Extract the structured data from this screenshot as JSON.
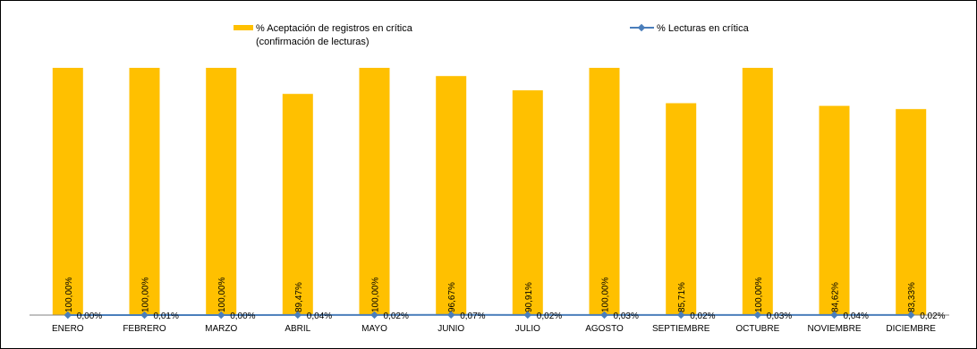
{
  "chart_data": {
    "type": "bar",
    "categories": [
      "ENERO",
      "FEBRERO",
      "MARZO",
      "ABRIL",
      "MAYO",
      "JUNIO",
      "JULIO",
      "AGOSTO",
      "SEPTIEMBRE",
      "OCTUBRE",
      "NOVIEMBRE",
      "DICIEMBRE"
    ],
    "series": [
      {
        "name_lines": [
          "% Aceptación de registros en crítica",
          "(confirmación de lecturas)"
        ],
        "kind": "bar",
        "color": "#FFC000",
        "values": [
          100.0,
          100.0,
          100.0,
          89.47,
          100.0,
          96.67,
          90.91,
          100.0,
          85.71,
          100.0,
          84.62,
          83.33
        ],
        "labels": [
          "100,00%",
          "100,00%",
          "100,00%",
          "89,47%",
          "100,00%",
          "96,67%",
          "90,91%",
          "100,00%",
          "85,71%",
          "100,00%",
          "84,62%",
          "83,33%"
        ]
      },
      {
        "name": "% Lecturas en crítica",
        "kind": "line",
        "color": "#4A7EBB",
        "values": [
          0.0,
          0.01,
          0.0,
          0.04,
          0.02,
          0.07,
          0.02,
          0.03,
          0.02,
          0.03,
          0.04,
          0.02
        ],
        "labels": [
          "0,00%",
          "0,01%",
          "0,00%",
          "0,04%",
          "0,02%",
          "0,07%",
          "0,02%",
          "0,03%",
          "0,02%",
          "0,03%",
          "0,04%",
          "0,02%"
        ]
      }
    ],
    "ylim": [
      0,
      100
    ],
    "grid": false,
    "legend_position": "top"
  }
}
